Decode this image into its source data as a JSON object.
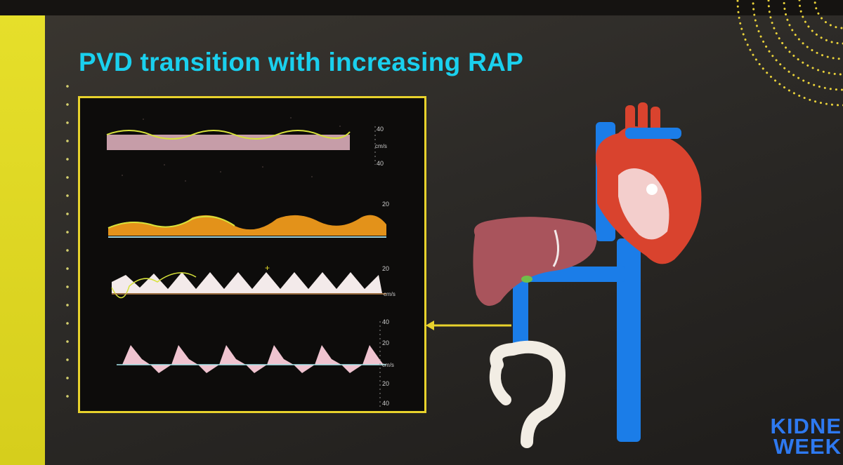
{
  "slide": {
    "title": "PVD transition with increasing RAP",
    "logo_line1": "KIDNE",
    "logo_line2": "WEEK"
  },
  "traces": [
    {
      "labels": [
        "40",
        "cm/s",
        "40"
      ]
    },
    {
      "labels": [
        "20"
      ]
    },
    {
      "labels": [
        "20",
        "cm/s"
      ]
    },
    {
      "labels": [
        "40",
        "20",
        "cm/s",
        "20",
        "40"
      ]
    }
  ],
  "colors": {
    "title": "#1ad0ee",
    "panel_border": "#e8d22c",
    "accent_yellow": "#e6df2a",
    "vein_blue": "#1b7de8",
    "logo_blue": "#2e79f0"
  }
}
